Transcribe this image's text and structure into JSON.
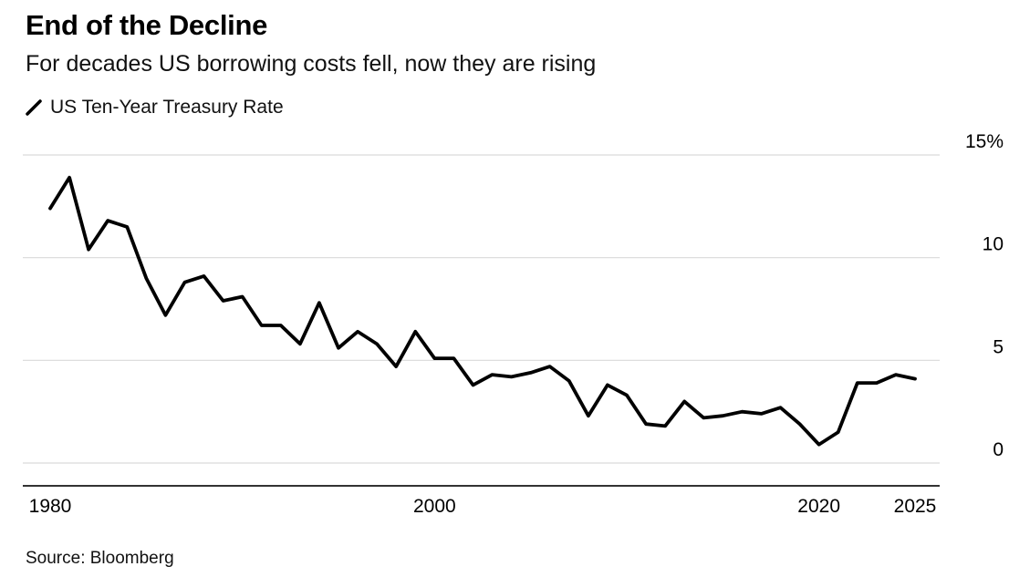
{
  "header": {
    "title": "End of the Decline",
    "subtitle": "For decades US borrowing costs fell, now they are rising"
  },
  "legend": {
    "label": "US Ten-Year Treasury Rate"
  },
  "source": "Source: Bloomberg",
  "colors": {
    "line": "#000000",
    "gridline": "#d9d9d9",
    "axis": "#333333",
    "text": "#000000"
  },
  "chart_data": {
    "type": "line",
    "title": "End of the Decline",
    "subtitle": "For decades US borrowing costs fell, now they are rising",
    "series_name": "US Ten-Year Treasury Rate",
    "xlabel": "",
    "ylabel": "",
    "ylim": [
      0,
      15
    ],
    "grid": "horizontal",
    "legend_position": "top-left",
    "x": [
      1980,
      1981,
      1982,
      1983,
      1984,
      1985,
      1986,
      1987,
      1988,
      1989,
      1990,
      1991,
      1992,
      1993,
      1994,
      1995,
      1996,
      1997,
      1998,
      1999,
      2000,
      2001,
      2002,
      2003,
      2004,
      2005,
      2006,
      2007,
      2008,
      2009,
      2010,
      2011,
      2012,
      2013,
      2014,
      2015,
      2016,
      2017,
      2018,
      2019,
      2020,
      2021,
      2022,
      2023,
      2024,
      2025
    ],
    "values": [
      12.4,
      13.9,
      10.4,
      11.8,
      11.5,
      9.0,
      7.2,
      8.8,
      9.1,
      7.9,
      8.1,
      6.7,
      6.7,
      5.8,
      7.8,
      5.6,
      6.4,
      5.8,
      4.7,
      6.4,
      5.1,
      5.1,
      3.8,
      4.3,
      4.2,
      4.4,
      4.7,
      4.0,
      2.3,
      3.8,
      3.3,
      1.9,
      1.8,
      3.0,
      2.2,
      2.3,
      2.5,
      2.4,
      2.7,
      1.9,
      0.9,
      1.5,
      3.9,
      3.9,
      4.3,
      4.1
    ],
    "y_ticks": [
      {
        "value": 15,
        "label": "15%"
      },
      {
        "value": 10,
        "label": "10"
      },
      {
        "value": 5,
        "label": "5"
      },
      {
        "value": 0,
        "label": "0"
      }
    ],
    "x_ticks": [
      {
        "value": 1980,
        "label": "1980"
      },
      {
        "value": 2000,
        "label": "2000"
      },
      {
        "value": 2020,
        "label": "2020"
      },
      {
        "value": 2025,
        "label": "2025"
      }
    ]
  }
}
